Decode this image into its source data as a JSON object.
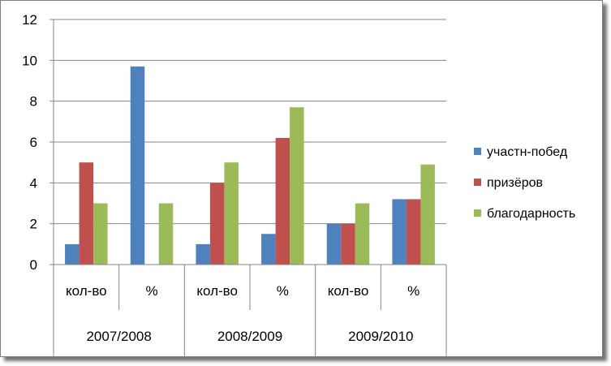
{
  "chart_data": {
    "type": "bar",
    "categories": [
      "кол-во",
      "%",
      "кол-во",
      "%",
      "кол-во",
      "%"
    ],
    "groups": [
      "2007/2008",
      "2008/2009",
      "2009/2010"
    ],
    "series": [
      {
        "name": "участн-побед",
        "color": "#4f81bd",
        "values": [
          1,
          9.7,
          1,
          1.5,
          2,
          3.2
        ]
      },
      {
        "name": "призёров",
        "color": "#c0504d",
        "values": [
          5,
          0,
          4,
          6.2,
          2,
          3.2
        ]
      },
      {
        "name": "благодарность",
        "color": "#9bbb59",
        "values": [
          3,
          3,
          5,
          7.7,
          3,
          4.9
        ]
      }
    ],
    "ylim": [
      0,
      12
    ],
    "yticks": [
      0,
      2,
      4,
      6,
      8,
      10,
      12
    ],
    "title": "",
    "xlabel": "",
    "ylabel": "",
    "grid": true,
    "legend_position": "right"
  }
}
